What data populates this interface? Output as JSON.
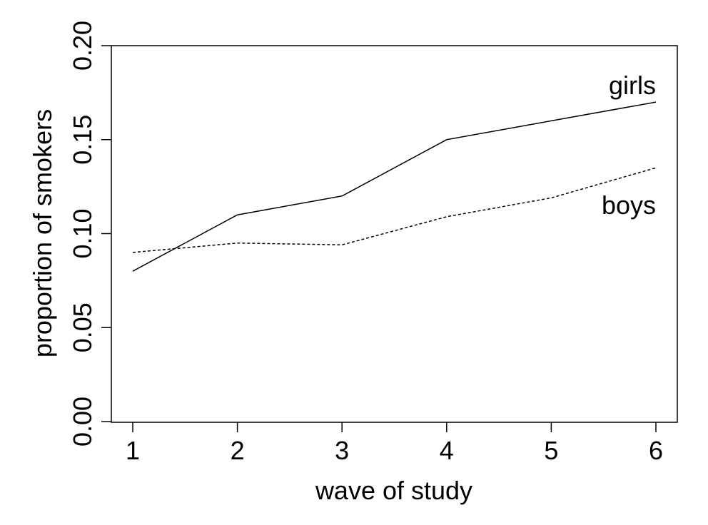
{
  "chart_data": {
    "type": "line",
    "title": "",
    "xlabel": "wave of study",
    "ylabel": "proportion of smokers",
    "x": [
      1,
      2,
      3,
      4,
      5,
      6
    ],
    "xlim": [
      1,
      6
    ],
    "ylim": [
      0.0,
      0.2
    ],
    "x_ticks": [
      "1",
      "2",
      "3",
      "4",
      "5",
      "6"
    ],
    "y_ticks": [
      "0.00",
      "0.05",
      "0.10",
      "0.15",
      "0.20"
    ],
    "grid": false,
    "legend": "none",
    "series": [
      {
        "name": "girls",
        "line_style": "solid",
        "color": "#000000",
        "values": [
          0.08,
          0.11,
          0.12,
          0.15,
          0.16,
          0.17
        ]
      },
      {
        "name": "boys",
        "line_style": "dashed",
        "color": "#000000",
        "values": [
          0.09,
          0.095,
          0.094,
          0.109,
          0.119,
          0.135
        ]
      }
    ]
  }
}
